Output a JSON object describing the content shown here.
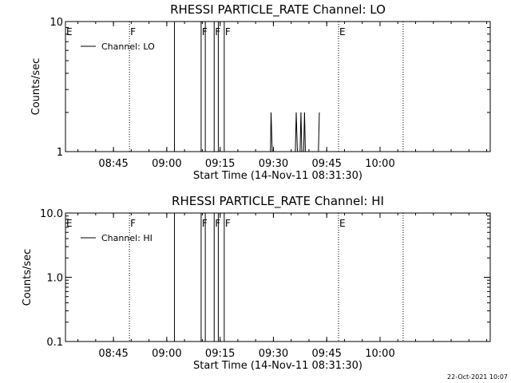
{
  "footer": {
    "timestamp": "22-Oct-2021 10:07"
  },
  "chart_data": [
    {
      "type": "line",
      "title": "RHESSI PARTICLE_RATE Channel: LO",
      "xlabel": "Start Time (14-Nov-11 08:31:30)",
      "ylabel": "Counts/sec",
      "yscale": "log",
      "xlim": [
        "08:31:30",
        "10:31:00"
      ],
      "ylim": [
        1,
        10
      ],
      "x_ticks": [
        "08:45",
        "09:00",
        "09:15",
        "09:30",
        "09:45",
        "10:00"
      ],
      "y_ticks": [
        "1",
        "10"
      ],
      "legend": {
        "placement": "top-left",
        "entries": [
          "Channel: LO"
        ]
      },
      "grid": false,
      "series": [
        {
          "name": "Channel: LO",
          "points": [
            {
              "x": "09:29:10",
              "y": 1
            },
            {
              "x": "09:29:20",
              "y": 2
            },
            {
              "x": "09:29:40",
              "y": 1
            },
            {
              "x": "09:36:10",
              "y": 1
            },
            {
              "x": "09:36:25",
              "y": 2
            },
            {
              "x": "09:36:45",
              "y": 1
            },
            {
              "x": "09:37:30",
              "y": 1
            },
            {
              "x": "09:37:45",
              "y": 2
            },
            {
              "x": "09:38:00",
              "y": 1
            },
            {
              "x": "09:38:30",
              "y": 1
            },
            {
              "x": "09:38:45",
              "y": 2
            },
            {
              "x": "09:39:00",
              "y": 1
            },
            {
              "x": "09:42:40",
              "y": 1
            },
            {
              "x": "09:42:55",
              "y": 2
            }
          ]
        }
      ],
      "flags": [
        {
          "time": "08:31:30",
          "label": "E",
          "style": "none"
        },
        {
          "time": "08:49:30",
          "label": "F",
          "style": "dotted"
        },
        {
          "time": "09:02:10",
          "label": "",
          "style": "solid"
        },
        {
          "time": "09:09:40",
          "label": "F",
          "style": "solid"
        },
        {
          "time": "09:10:50",
          "label": "",
          "style": "solid"
        },
        {
          "time": "09:13:20",
          "label": "F",
          "style": "solid"
        },
        {
          "time": "09:14:30",
          "label": "",
          "style": "solid"
        },
        {
          "time": "09:16:10",
          "label": "F",
          "style": "solid"
        },
        {
          "time": "09:48:20",
          "label": "E",
          "style": "dotted"
        },
        {
          "time": "10:06:30",
          "label": "",
          "style": "dotted"
        }
      ]
    },
    {
      "type": "line",
      "title": "RHESSI PARTICLE_RATE Channel: HI",
      "xlabel": "Start Time (14-Nov-11 08:31:30)",
      "ylabel": "Counts/sec",
      "yscale": "log",
      "xlim": [
        "08:31:30",
        "10:31:00"
      ],
      "ylim": [
        0.1,
        10
      ],
      "x_ticks": [
        "08:45",
        "09:00",
        "09:15",
        "09:30",
        "09:45",
        "10:00"
      ],
      "y_ticks": [
        "0.1",
        "1.0",
        "10.0"
      ],
      "legend": {
        "placement": "top-left",
        "entries": [
          "Channel: HI"
        ]
      },
      "grid": false,
      "series": [
        {
          "name": "Channel: HI",
          "points": []
        }
      ],
      "flags": [
        {
          "time": "08:31:30",
          "label": "E",
          "style": "none"
        },
        {
          "time": "08:49:30",
          "label": "F",
          "style": "dotted"
        },
        {
          "time": "09:02:10",
          "label": "",
          "style": "solid"
        },
        {
          "time": "09:09:40",
          "label": "F",
          "style": "solid"
        },
        {
          "time": "09:10:50",
          "label": "",
          "style": "solid"
        },
        {
          "time": "09:13:20",
          "label": "F",
          "style": "solid"
        },
        {
          "time": "09:14:30",
          "label": "",
          "style": "solid"
        },
        {
          "time": "09:16:10",
          "label": "F",
          "style": "solid"
        },
        {
          "time": "09:48:20",
          "label": "E",
          "style": "dotted"
        },
        {
          "time": "10:06:30",
          "label": "",
          "style": "dotted"
        }
      ]
    }
  ]
}
